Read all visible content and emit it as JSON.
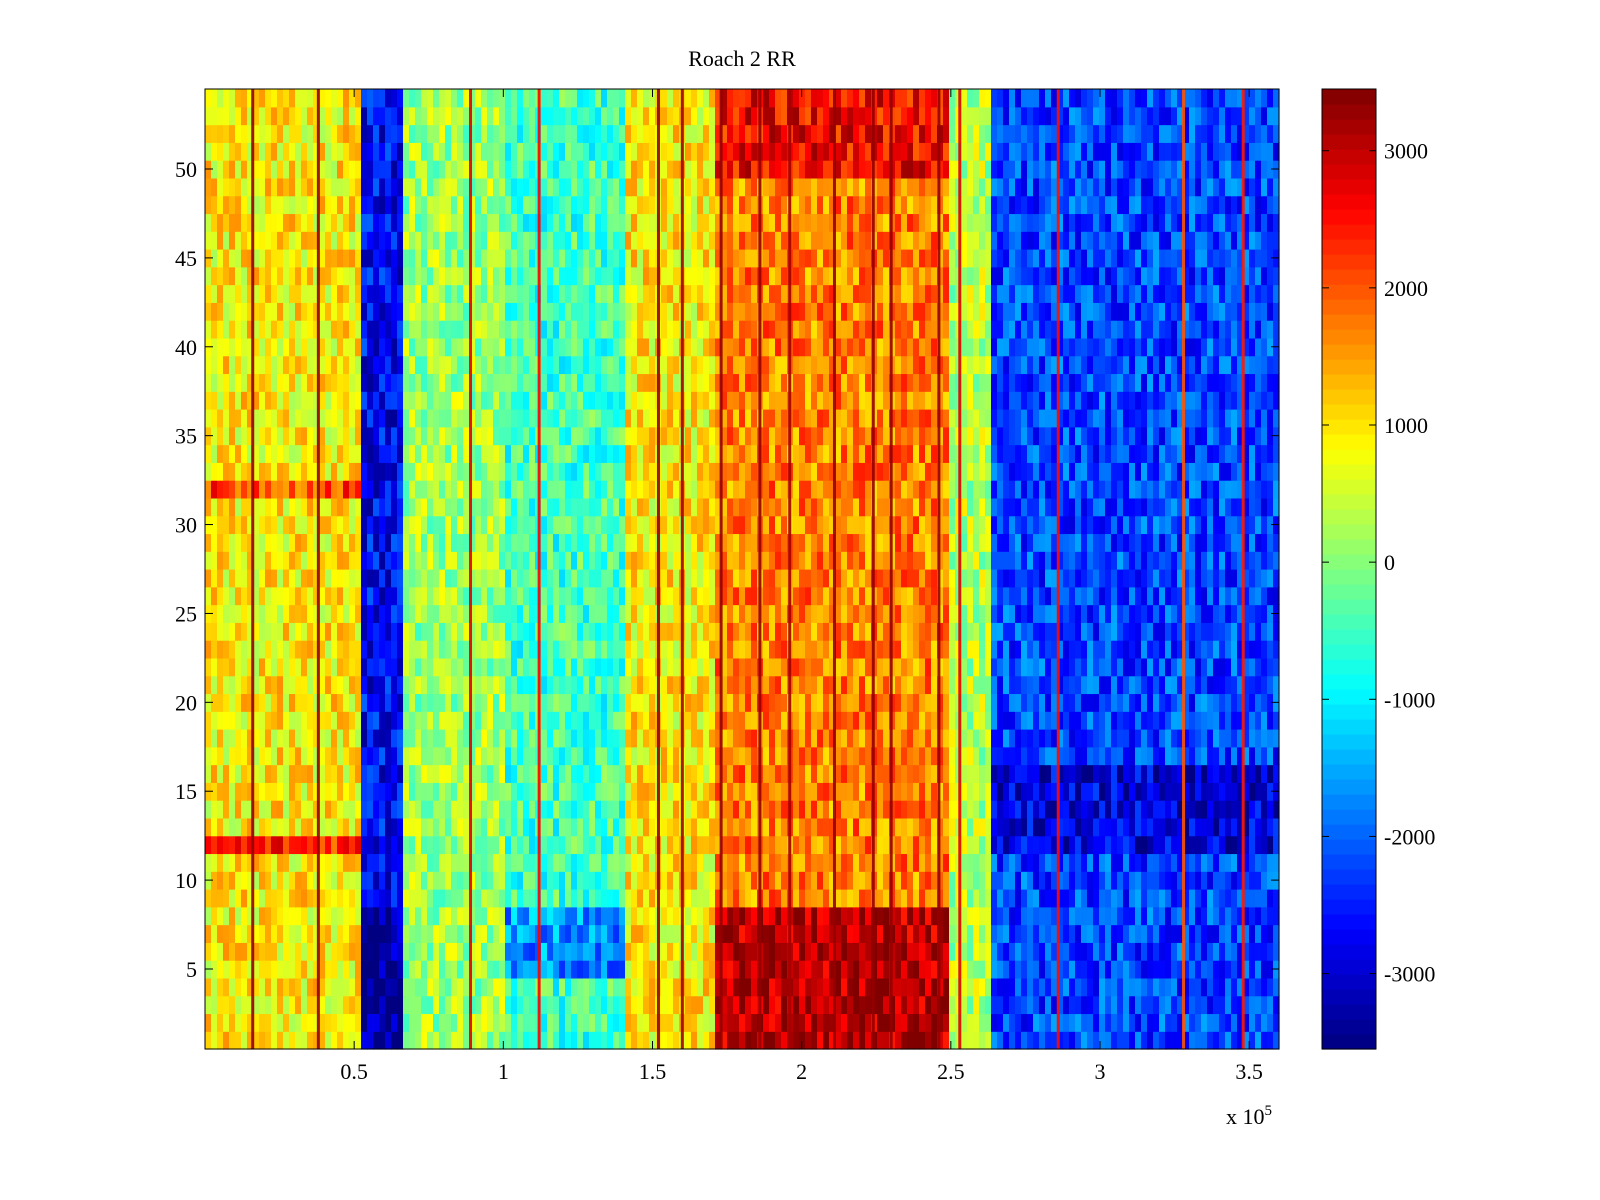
{
  "chart_data": {
    "type": "heatmap",
    "title": "Roach 2 RR",
    "xlabel": "",
    "ylabel": "",
    "xlim": [
      0,
      3.6
    ],
    "ylim": [
      0.5,
      54.5
    ],
    "x_multiplier_label": "x 10",
    "x_multiplier_exponent": "5",
    "x_ticks": [
      "0.5",
      "1",
      "1.5",
      "2",
      "2.5",
      "3",
      "3.5"
    ],
    "y_ticks": [
      "5",
      "10",
      "15",
      "20",
      "25",
      "30",
      "35",
      "40",
      "45",
      "50"
    ],
    "colorbar": {
      "colormap": "jet",
      "clim": [
        -3550,
        3450
      ],
      "ticks": [
        "3000",
        "2000",
        "1000",
        "0",
        "-1000",
        "-2000",
        "-3000"
      ]
    },
    "rows": 54,
    "column_bands": [
      {
        "x_start": 0.0,
        "x_end": 0.52,
        "value": 900
      },
      {
        "x_start": 0.52,
        "x_end": 0.67,
        "value": -2700
      },
      {
        "x_start": 0.67,
        "x_end": 1.0,
        "value": 150
      },
      {
        "x_start": 1.0,
        "x_end": 1.4,
        "value": -500
      },
      {
        "x_start": 1.4,
        "x_end": 1.7,
        "value": 900
      },
      {
        "x_start": 1.7,
        "x_end": 2.5,
        "value": 1700
      },
      {
        "x_start": 2.5,
        "x_end": 2.64,
        "value": 300
      },
      {
        "x_start": 2.64,
        "x_end": 3.6,
        "value": -2200
      }
    ],
    "row_effects": [
      {
        "y_start": 0.5,
        "y_end": 8.5,
        "x_start": 1.7,
        "x_end": 2.5,
        "delta": 1400
      },
      {
        "y_start": 0.5,
        "y_end": 8.5,
        "x_start": 0.52,
        "x_end": 0.67,
        "delta": -700
      },
      {
        "y_start": 4.5,
        "y_end": 8.5,
        "x_start": 1.0,
        "x_end": 1.4,
        "delta": -1200
      },
      {
        "y_start": 11.5,
        "y_end": 12.5,
        "x_start": 0.0,
        "x_end": 0.52,
        "delta": 1500
      },
      {
        "y_start": 31.5,
        "y_end": 32.5,
        "x_start": 0.0,
        "x_end": 0.52,
        "delta": 1200
      },
      {
        "y_start": 11.5,
        "y_end": 16.5,
        "x_start": 2.64,
        "x_end": 3.6,
        "delta": -700
      },
      {
        "y_start": 49.5,
        "y_end": 54.5,
        "x_start": 1.7,
        "x_end": 2.5,
        "delta": 900
      }
    ],
    "streaks": [
      {
        "x": 0.16,
        "value": 3300
      },
      {
        "x": 0.38,
        "value": 3300
      },
      {
        "x": 0.89,
        "value": 2800
      },
      {
        "x": 1.12,
        "value": 2600
      },
      {
        "x": 1.52,
        "value": 3300
      },
      {
        "x": 1.6,
        "value": 3200
      },
      {
        "x": 1.73,
        "value": 3300
      },
      {
        "x": 1.86,
        "value": 3300
      },
      {
        "x": 1.96,
        "value": 3200
      },
      {
        "x": 2.11,
        "value": 3300
      },
      {
        "x": 2.24,
        "value": 3300
      },
      {
        "x": 2.3,
        "value": 3300
      },
      {
        "x": 2.46,
        "value": 3300
      },
      {
        "x": 2.53,
        "value": 2800
      },
      {
        "x": 2.86,
        "value": 2500
      },
      {
        "x": 3.28,
        "value": 2000
      },
      {
        "x": 3.48,
        "value": 2400
      }
    ],
    "noise_amplitude": 700
  }
}
